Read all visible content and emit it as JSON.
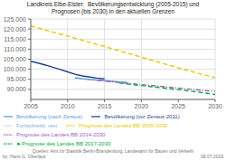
{
  "chart_data": {
    "type": "line",
    "title": "Landkreis Elbe-Elster:  Bevölkerungsentwicklung (2005-2015) und\nPrognosen (bis 2030) in den aktuellen Grenzen",
    "xlim": [
      2005,
      2030
    ],
    "xticks": [
      2005,
      2010,
      2015,
      2020,
      2025,
      2030
    ],
    "ylim": [
      85000,
      125000
    ],
    "yticks": [
      {
        "value": 90000,
        "label": "90.000"
      },
      {
        "value": 95000,
        "label": "95.000"
      },
      {
        "value": 100000,
        "label": "100.000"
      },
      {
        "value": 105000,
        "label": "105.000"
      },
      {
        "value": 110000,
        "label": "110.000"
      },
      {
        "value": 115000,
        "label": "115.000"
      },
      {
        "value": 120000,
        "label": "120.000"
      },
      {
        "value": 125000,
        "label": "125.000"
      }
    ],
    "grid": true,
    "legend": "lower left",
    "series": [
      {
        "name": "Bevölkerung (vor Zensus 2011)",
        "color": "#1f3f8f",
        "line_style": "solid",
        "x": [
          2005,
          2006,
          2007,
          2008,
          2009,
          2010,
          2011,
          2012,
          2013,
          2014,
          2015
        ],
        "values": [
          104000,
          103100,
          102100,
          101000,
          99900,
          98700,
          97500,
          96700,
          96100,
          95600,
          95200
        ]
      },
      {
        "name": "Fortschreibt. neu",
        "color": "#7ab0d8",
        "line_style": "dotted",
        "x": [
          2011,
          2012,
          2013,
          2014,
          2015,
          2016,
          2017,
          2018
        ],
        "values": [
          95800,
          95300,
          94900,
          94600,
          94300,
          94000,
          93700,
          93500
        ]
      },
      {
        "name": "Bevölkerung (nach Zensus)",
        "color": "#5b9bd5",
        "line_style": "solid",
        "x": [
          2011,
          2012,
          2013,
          2014,
          2015,
          2016,
          2017,
          2018
        ],
        "values": [
          95800,
          95300,
          94900,
          94600,
          94300,
          94000,
          93700,
          93500
        ]
      },
      {
        "name": "Prognose des Landes BB 2005-2030",
        "color": "#e8c800",
        "line_style": "dashed",
        "x": [
          2005,
          2010,
          2015,
          2020,
          2025,
          2030
        ],
        "values": [
          121500,
          116500,
          111300,
          106000,
          100700,
          95800
        ]
      },
      {
        "name": "Prognose des Landes BB 2014-2030",
        "color": "#9e5fb5",
        "line_style": "dashdot",
        "x": [
          2014,
          2016,
          2018,
          2020,
          2022,
          2024,
          2026,
          2028,
          2030
        ],
        "values": [
          94600,
          93800,
          93100,
          92400,
          91700,
          91000,
          90300,
          89600,
          89000
        ]
      },
      {
        "name": "►Prognose des Landes BB 2017-2030",
        "color": "#00aa44",
        "line_style": "dashed",
        "x": [
          2017,
          2019,
          2021,
          2023,
          2025,
          2027,
          2030
        ],
        "values": [
          93200,
          92300,
          91500,
          90700,
          89900,
          89000,
          87500
        ]
      }
    ],
    "annotations": [
      "by: Hans G. Oberlack",
      "Quellen: Amt für Statistik Berlin-Brandenburg, Landesamt für Bauen und Verkehr",
      "08.07.2019"
    ]
  }
}
